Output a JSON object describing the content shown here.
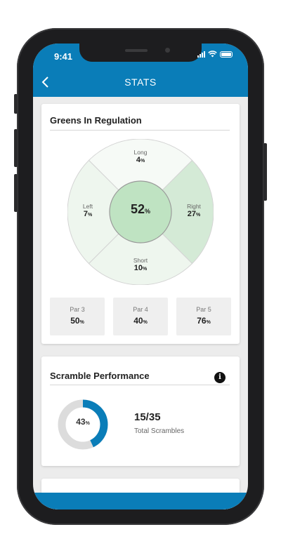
{
  "status_bar": {
    "time": "9:41"
  },
  "header": {
    "title": "STATS"
  },
  "greens": {
    "title": "Greens In Regulation",
    "center": {
      "value": "52",
      "unit": "%"
    },
    "long": {
      "label": "Long",
      "value": "4",
      "unit": "%"
    },
    "left": {
      "label": "Left",
      "value": "7",
      "unit": "%"
    },
    "right": {
      "label": "Right",
      "value": "27",
      "unit": "%"
    },
    "short": {
      "label": "Short",
      "value": "10",
      "unit": "%"
    },
    "par3": {
      "label": "Par 3",
      "value": "50",
      "unit": "%"
    },
    "par4": {
      "label": "Par 4",
      "value": "40",
      "unit": "%"
    },
    "par5": {
      "label": "Par 5",
      "value": "76",
      "unit": "%"
    }
  },
  "scramble": {
    "title": "Scramble Performance",
    "info_icon": "i",
    "percent": 43,
    "percent_text": "43",
    "unit": "%",
    "fraction": "15/35",
    "fraction_label": "Total Scrambles"
  },
  "colors": {
    "brand_blue": "#0a7db8",
    "green_center": "#bfe3c2",
    "green_right": "#d4ead6",
    "green_light": "#eef6ee",
    "green_lightest": "#f6faf6",
    "donut_track": "#dcdcdc"
  }
}
